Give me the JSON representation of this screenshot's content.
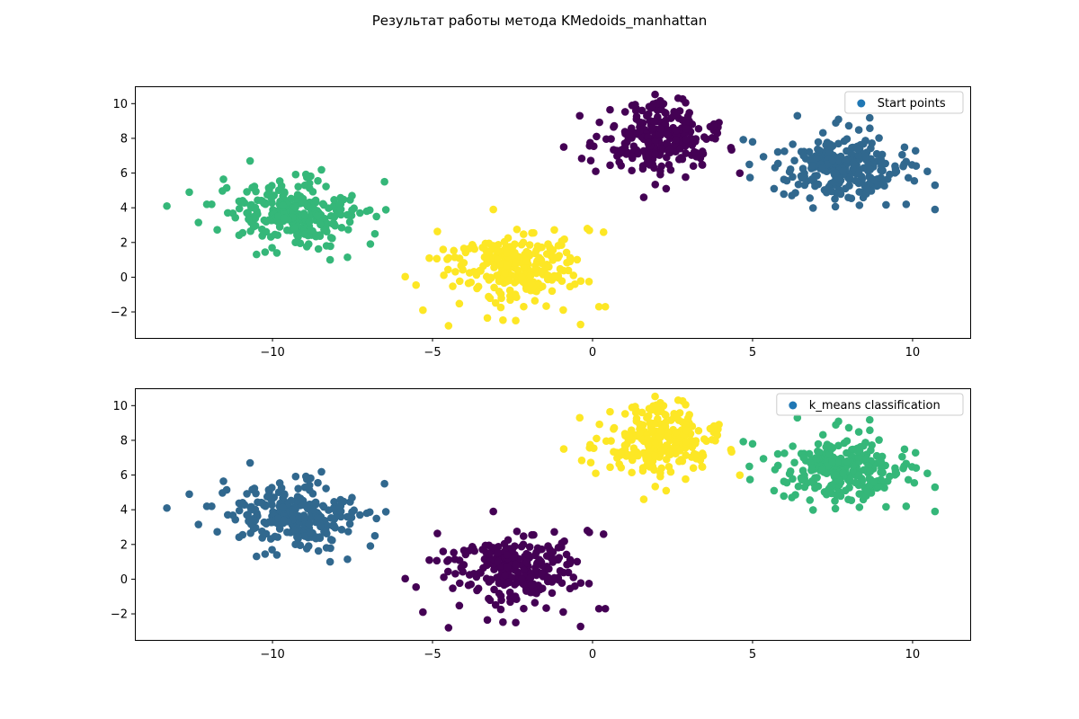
{
  "figure": {
    "title": "Результат работы метода KMedoids_manhattan"
  },
  "chart_data": [
    {
      "type": "scatter",
      "legend": {
        "label": "Start points",
        "placement": "top-right",
        "marker_color": "#1f77b4"
      },
      "xlim": [
        -14.3,
        11.8
      ],
      "ylim": [
        -3.5,
        11.0
      ],
      "xticks": [
        -10,
        -5,
        0,
        5,
        10
      ],
      "yticks": [
        -2,
        0,
        2,
        4,
        6,
        8,
        10
      ],
      "xtick_labels": [
        "−10",
        "−5",
        "0",
        "5",
        "10"
      ],
      "ytick_labels": [
        "−2",
        "0",
        "2",
        "4",
        "6",
        "8",
        "10"
      ],
      "grid": false,
      "cluster_colors": [
        "#440154",
        "#31688e",
        "#35b779",
        "#fde725"
      ],
      "clusters": [
        {
          "center": [
            2.0,
            8.0
          ],
          "spread": [
            0.9,
            1.05
          ],
          "count": 250,
          "color": "#440154",
          "outliers": [
            [
              -0.9,
              7.5
            ],
            [
              1.6,
              4.6
            ],
            [
              2.3,
              5.1
            ],
            [
              3.9,
              8.3
            ],
            [
              -0.4,
              9.3
            ],
            [
              0.1,
              6.1
            ]
          ]
        },
        {
          "center": [
            7.8,
            6.3
          ],
          "spread": [
            1.0,
            0.95
          ],
          "count": 250,
          "color": "#31688e",
          "outliers": [
            [
              4.9,
              6.5
            ],
            [
              5.0,
              7.8
            ],
            [
              10.7,
              5.3
            ],
            [
              10.7,
              3.9
            ],
            [
              6.4,
              9.3
            ],
            [
              9.8,
              4.2
            ]
          ]
        },
        {
          "center": [
            -9.3,
            3.6
          ],
          "spread": [
            1.0,
            1.0
          ],
          "count": 250,
          "color": "#35b779",
          "outliers": [
            [
              -13.3,
              4.1
            ],
            [
              -12.6,
              4.9
            ],
            [
              -6.5,
              5.5
            ],
            [
              -8.2,
              1.0
            ],
            [
              -6.8,
              2.5
            ],
            [
              -11.9,
              4.2
            ],
            [
              -10.7,
              6.7
            ]
          ]
        },
        {
          "center": [
            -2.5,
            0.6
          ],
          "spread": [
            1.05,
            1.1
          ],
          "count": 250,
          "color": "#fde725",
          "outliers": [
            [
              -4.5,
              -2.8
            ],
            [
              -5.3,
              -1.9
            ],
            [
              0.4,
              -1.7
            ],
            [
              0.2,
              -1.7
            ],
            [
              -2.4,
              -2.5
            ],
            [
              -0.1,
              2.7
            ],
            [
              -3.1,
              3.9
            ],
            [
              -5.1,
              1.1
            ]
          ]
        }
      ]
    },
    {
      "type": "scatter",
      "legend": {
        "label": "k_means classification",
        "placement": "top-right",
        "marker_color": "#1f77b4"
      },
      "xlim": [
        -14.3,
        11.8
      ],
      "ylim": [
        -3.5,
        11.0
      ],
      "xticks": [
        -10,
        -5,
        0,
        5,
        10
      ],
      "yticks": [
        -2,
        0,
        2,
        4,
        6,
        8,
        10
      ],
      "xtick_labels": [
        "−10",
        "−5",
        "0",
        "5",
        "10"
      ],
      "ytick_labels": [
        "−2",
        "0",
        "2",
        "4",
        "6",
        "8",
        "10"
      ],
      "grid": false,
      "cluster_colors": [
        "#fde725",
        "#35b779",
        "#31688e",
        "#440154"
      ],
      "clusters": [
        {
          "center": [
            2.0,
            8.0
          ],
          "spread": [
            0.9,
            1.05
          ],
          "count": 250,
          "color": "#fde725",
          "outliers": [
            [
              -0.9,
              7.5
            ],
            [
              1.6,
              4.6
            ],
            [
              2.3,
              5.1
            ],
            [
              3.9,
              8.3
            ],
            [
              -0.4,
              9.3
            ],
            [
              0.1,
              6.1
            ]
          ]
        },
        {
          "center": [
            7.8,
            6.3
          ],
          "spread": [
            1.0,
            0.95
          ],
          "count": 250,
          "color": "#35b779",
          "outliers": [
            [
              4.9,
              6.5
            ],
            [
              5.0,
              7.8
            ],
            [
              10.7,
              5.3
            ],
            [
              10.7,
              3.9
            ],
            [
              6.4,
              9.3
            ],
            [
              9.8,
              4.2
            ]
          ]
        },
        {
          "center": [
            -9.3,
            3.6
          ],
          "spread": [
            1.0,
            1.0
          ],
          "count": 250,
          "color": "#31688e",
          "outliers": [
            [
              -13.3,
              4.1
            ],
            [
              -12.6,
              4.9
            ],
            [
              -6.5,
              5.5
            ],
            [
              -8.2,
              1.0
            ],
            [
              -6.8,
              2.5
            ],
            [
              -11.9,
              4.2
            ],
            [
              -10.7,
              6.7
            ]
          ]
        },
        {
          "center": [
            -2.5,
            0.6
          ],
          "spread": [
            1.05,
            1.1
          ],
          "count": 250,
          "color": "#440154",
          "outliers": [
            [
              -4.5,
              -2.8
            ],
            [
              -5.3,
              -1.9
            ],
            [
              0.4,
              -1.7
            ],
            [
              0.2,
              -1.7
            ],
            [
              -2.4,
              -2.5
            ],
            [
              -0.1,
              2.7
            ],
            [
              -3.1,
              3.9
            ],
            [
              -5.1,
              1.1
            ]
          ]
        }
      ]
    }
  ]
}
